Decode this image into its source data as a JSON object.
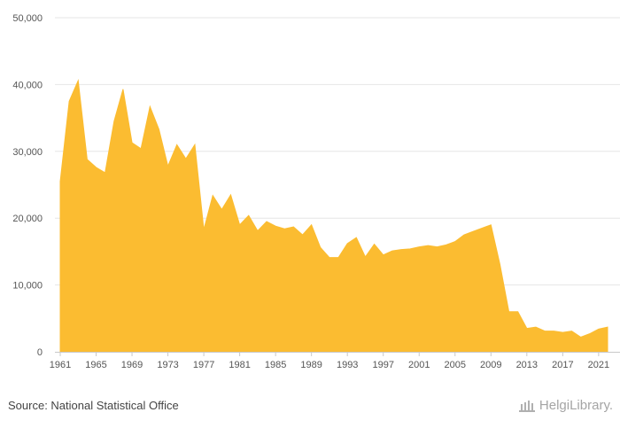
{
  "chart_data": {
    "type": "area",
    "x": [
      1961,
      1962,
      1963,
      1964,
      1965,
      1966,
      1967,
      1968,
      1969,
      1970,
      1971,
      1972,
      1973,
      1974,
      1975,
      1976,
      1977,
      1978,
      1979,
      1980,
      1981,
      1982,
      1983,
      1984,
      1985,
      1986,
      1987,
      1988,
      1989,
      1990,
      1991,
      1992,
      1993,
      1994,
      1995,
      1996,
      1997,
      1998,
      1999,
      2000,
      2001,
      2002,
      2003,
      2004,
      2005,
      2006,
      2007,
      2008,
      2009,
      2010,
      2011,
      2012,
      2013,
      2014,
      2015,
      2016,
      2017,
      2018,
      2019,
      2020,
      2021,
      2022
    ],
    "values": [
      25500,
      37500,
      40600,
      28800,
      27600,
      26800,
      34500,
      39300,
      31300,
      30400,
      36700,
      33300,
      27800,
      31000,
      28900,
      31000,
      18300,
      23400,
      21300,
      23500,
      19000,
      20400,
      18100,
      19500,
      18800,
      18400,
      18700,
      17500,
      19000,
      15600,
      14100,
      14100,
      16200,
      17100,
      14200,
      16100,
      14500,
      15100,
      15300,
      15400,
      15700,
      15900,
      15700,
      16000,
      16500,
      17500,
      18000,
      18500,
      19000,
      13100,
      6000,
      6000,
      3500,
      3700,
      3100,
      3100,
      2900,
      3100,
      2200,
      2700,
      3400,
      3700
    ],
    "xlabel": "",
    "ylabel": "",
    "ylim": [
      0,
      50000
    ],
    "xlim": [
      1961,
      2022
    ],
    "x_ticks": [
      1961,
      1965,
      1969,
      1973,
      1977,
      1981,
      1985,
      1989,
      1993,
      1997,
      2001,
      2005,
      2009,
      2013,
      2017,
      2021
    ],
    "y_ticks": [
      0,
      10000,
      20000,
      30000,
      40000,
      50000
    ],
    "y_tick_labels": [
      "0",
      "10,000",
      "20,000",
      "30,000",
      "40,000",
      "50,000"
    ],
    "fill_color": "#FBBC31",
    "grid": true,
    "legend": "none"
  },
  "footer": {
    "source": "Source: National Statistical Office",
    "logo_text": "HelgiLibrary."
  }
}
